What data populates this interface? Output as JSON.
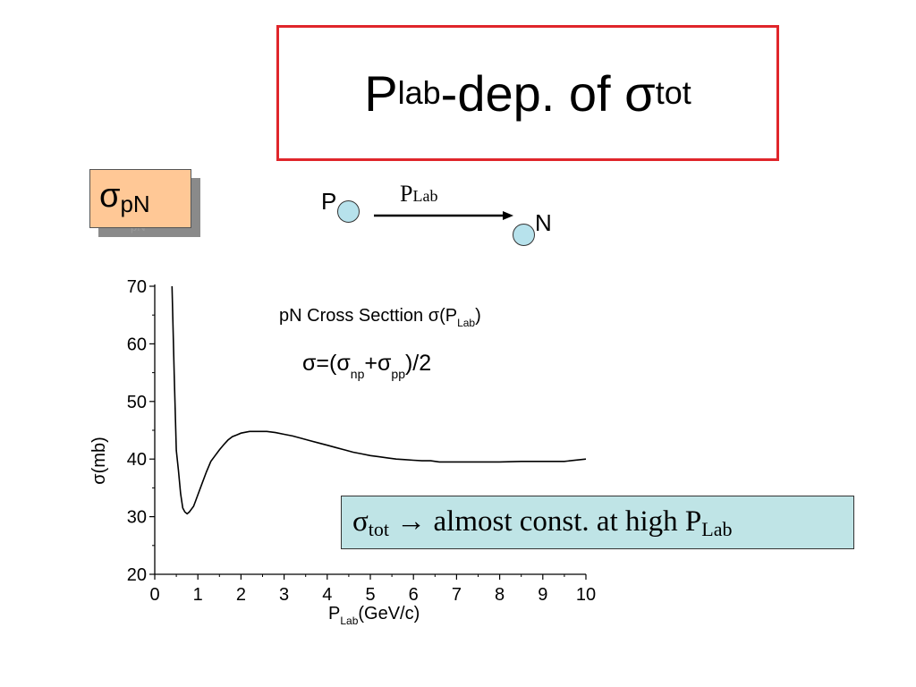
{
  "slide": {
    "title": {
      "main": "P",
      "sub1": "lab",
      "mid": "-dep. of σ",
      "sub2": "tot"
    },
    "badge": {
      "symbol": "σ",
      "sub": "pN"
    },
    "badge_ghost": "pN",
    "diagram": {
      "p_label": "P",
      "n_label": "N",
      "arrow_label_main": "P",
      "arrow_label_sub": "Lab"
    },
    "conclusion": {
      "sigma": "σ",
      "sigma_sub": "tot",
      "text": "→ almost const. at high P",
      "text_sub": "Lab"
    },
    "colors": {
      "title_border": "#e0262b",
      "badge_fill": "#ffc896",
      "particle_fill": "#b7e2ec",
      "conclusion_fill": "#bfe4e6"
    }
  },
  "chart_data": {
    "type": "line",
    "title": "pN Cross Secttion σ(P",
    "title_sub": "Lab",
    "title_close": ")",
    "annotation": {
      "lead": "σ=(σ",
      "sub1": "np",
      "plus": "+σ",
      "sub2": "pp",
      "tail": ")/2"
    },
    "xlabel": "P",
    "xlabel_sub": "Lab",
    "xlabel_unit": "(GeV/c)",
    "ylabel": "σ(mb)",
    "xlim": [
      0,
      10
    ],
    "ylim": [
      20,
      70
    ],
    "xticks": [
      0,
      1,
      2,
      3,
      4,
      5,
      6,
      7,
      8,
      9,
      10
    ],
    "yticks": [
      20,
      30,
      40,
      50,
      60,
      70
    ],
    "grid": false,
    "series": [
      {
        "x": [
          0.4,
          0.45,
          0.5,
          0.55,
          0.6,
          0.65,
          0.7,
          0.75,
          0.8,
          0.85,
          0.9,
          0.95,
          1.0,
          1.1,
          1.2,
          1.3,
          1.4,
          1.5,
          1.6,
          1.7,
          1.8,
          1.9,
          2.0,
          2.2,
          2.4,
          2.6,
          2.8,
          3.0,
          3.2,
          3.4,
          3.6,
          3.8,
          4.0,
          4.2,
          4.4,
          4.6,
          4.8,
          5.0,
          5.2,
          5.4,
          5.6,
          5.8,
          6.0,
          6.2,
          6.4,
          6.6,
          7.0,
          7.5,
          8.0,
          8.5,
          9.0,
          9.5,
          10.0
        ],
        "y": [
          70,
          55,
          41.5,
          38,
          34,
          31.5,
          30.8,
          30.5,
          30.8,
          31.3,
          31.8,
          32.8,
          33.8,
          35.8,
          37.8,
          39.6,
          40.6,
          41.6,
          42.5,
          43.3,
          43.9,
          44.2,
          44.5,
          44.8,
          44.8,
          44.8,
          44.6,
          44.3,
          44.0,
          43.6,
          43.2,
          42.8,
          42.4,
          42.0,
          41.6,
          41.2,
          40.9,
          40.6,
          40.4,
          40.2,
          40.0,
          39.9,
          39.8,
          39.7,
          39.7,
          39.5,
          39.5,
          39.5,
          39.5,
          39.6,
          39.6,
          39.6,
          40.0
        ]
      }
    ]
  }
}
